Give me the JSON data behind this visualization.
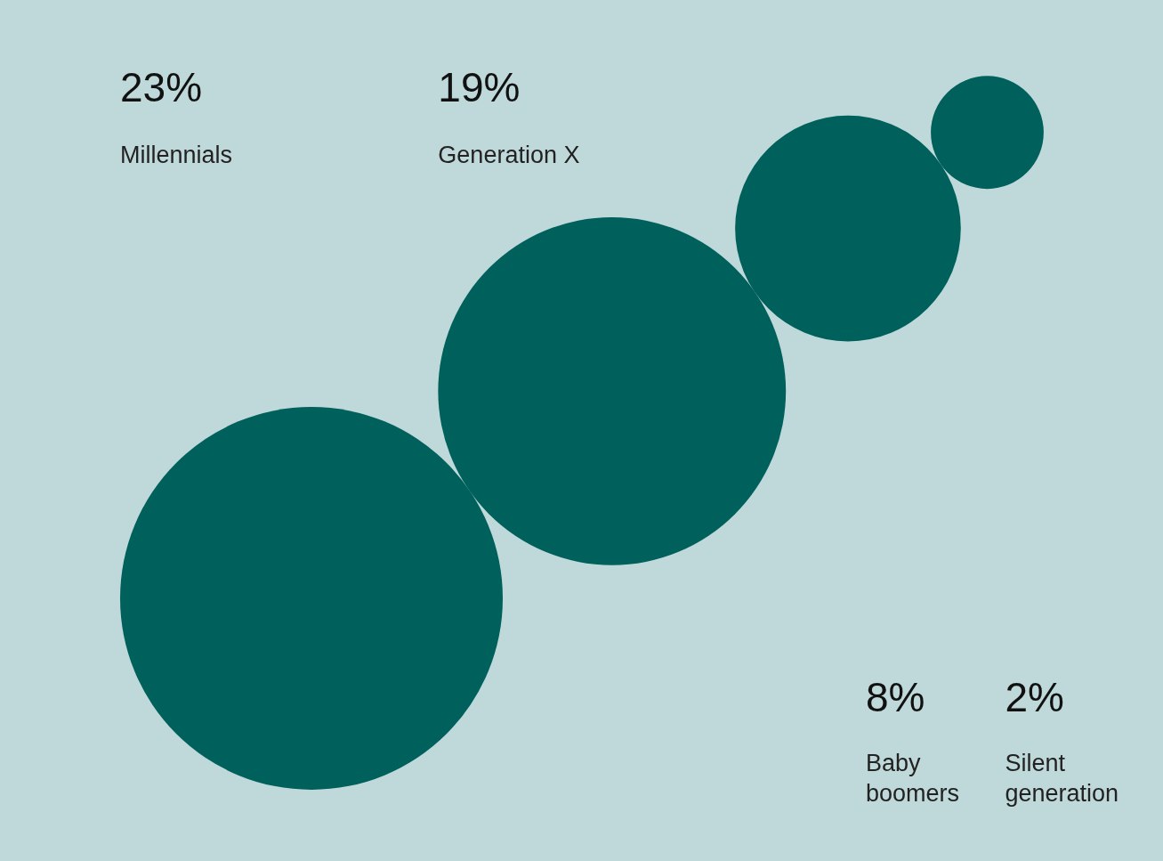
{
  "chart_data": {
    "type": "other",
    "categories": [
      "Millennials",
      "Generation X",
      "Baby boomers",
      "Silent generation"
    ],
    "values": [
      23,
      19,
      8,
      2
    ],
    "value_labels": [
      "23%",
      "19%",
      "8%",
      "2%"
    ],
    "color": "#00605c"
  }
}
